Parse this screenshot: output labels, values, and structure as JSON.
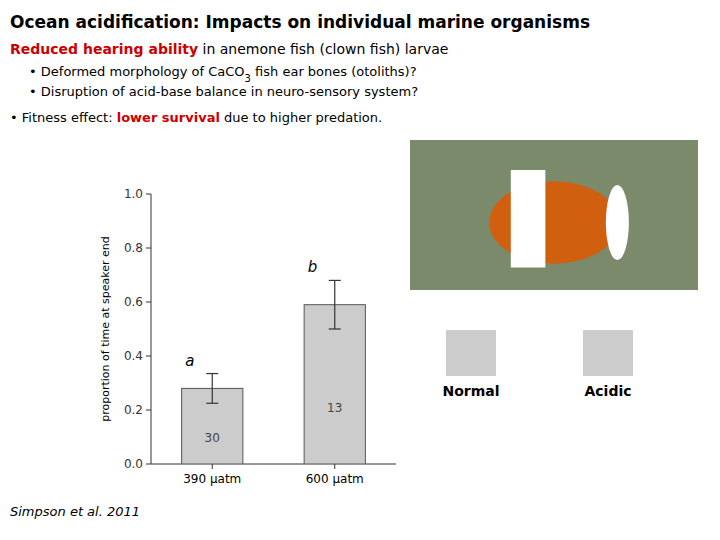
{
  "chart_data": {
    "type": "bar",
    "title": "Ocean acidification: Impacts on individual marine organisms",
    "subtitle": [
      {
        "text": "Reduced hearing ability",
        "color": "#cc0000"
      },
      {
        "text": " in anemone fish (clown fish) larvae"
      }
    ],
    "annotations": [
      [
        {
          "text": "• Deformed morphology of CaCO"
        },
        {
          "text": "3",
          "position": "sub"
        },
        {
          "text": " fish ear bones (otoliths)?"
        }
      ],
      [
        {
          "text": "• Disruption of acid-base balance in neuro-sensory system?"
        }
      ],
      [
        {
          "text": "• Fitness effect: "
        },
        {
          "text": "lower survival",
          "color": "#cc0000"
        },
        {
          "text": " due to higher predation."
        }
      ]
    ],
    "categories": [
      "390 μatm",
      "600 μatm"
    ],
    "values": [
      0.28,
      0.59
    ],
    "errors": [
      0.055,
      0.09
    ],
    "color": "#cccccc",
    "bar_annotations": [
      "30",
      "13"
    ],
    "significance_labels": [
      "a",
      "b"
    ],
    "ylabel": "proportion of time at speaker end",
    "ylim": [
      0,
      1.0
    ],
    "yticks": [
      {
        "value": 0,
        "label": "0.0"
      },
      0.2,
      0.4,
      0.6,
      0.8,
      {
        "value": 1.0,
        "label": "1.0"
      }
    ],
    "swatches": [
      {
        "label": "Normal",
        "color": "#cccccc"
      },
      {
        "label": "Acidic",
        "color": "#cccccc"
      }
    ],
    "citation": "Simpson et al. 2011"
  }
}
